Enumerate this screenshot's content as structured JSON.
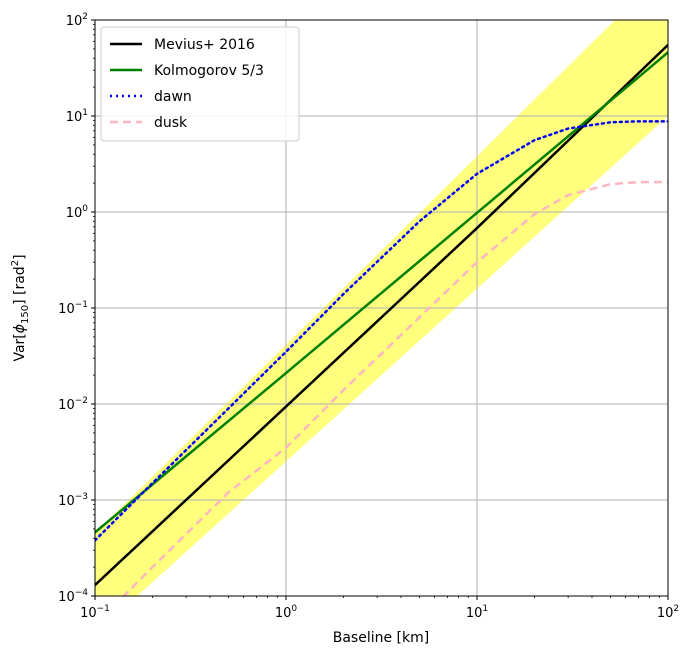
{
  "chart_data": {
    "type": "line",
    "xscale": "log",
    "yscale": "log",
    "xlim": [
      0.1,
      100
    ],
    "ylim": [
      0.0001,
      100
    ],
    "xlabel": "Baseline [km]",
    "ylabel": {
      "prefix": "Var[",
      "symbol": "ϕ",
      "subscript": "150",
      "suffix": "] [rad",
      "superscript": "2",
      "close": "]"
    },
    "x_ticks": [
      {
        "value": 0.1,
        "base": "10",
        "exp": "−1"
      },
      {
        "value": 1,
        "base": "10",
        "exp": "0"
      },
      {
        "value": 10,
        "base": "10",
        "exp": "1"
      },
      {
        "value": 100,
        "base": "10",
        "exp": "2"
      }
    ],
    "y_ticks": [
      {
        "value": 0.0001,
        "base": "10",
        "exp": "−4"
      },
      {
        "value": 0.001,
        "base": "10",
        "exp": "−3"
      },
      {
        "value": 0.01,
        "base": "10",
        "exp": "−2"
      },
      {
        "value": 0.1,
        "base": "10",
        "exp": "−1"
      },
      {
        "value": 1,
        "base": "10",
        "exp": "0"
      },
      {
        "value": 10,
        "base": "10",
        "exp": "1"
      },
      {
        "value": 100,
        "base": "10",
        "exp": "2"
      }
    ],
    "grid": true,
    "legend": "top-left",
    "band": {
      "color": "#ffff66",
      "lower": [
        [
          0.1,
          4e-05
        ],
        [
          100,
          10
        ]
      ],
      "upper": [
        [
          0.1,
          0.00045
        ],
        [
          100,
          350
        ]
      ]
    },
    "series": [
      {
        "name": "Mevius+ 2016",
        "color": "#000000",
        "style": "solid",
        "points": [
          [
            0.1,
            0.00013
          ],
          [
            1,
            0.0094
          ],
          [
            10,
            0.68
          ],
          [
            100,
            55
          ]
        ]
      },
      {
        "name": "Kolmogorov 5/3",
        "color": "#008000",
        "style": "solid",
        "points": [
          [
            0.1,
            0.00046
          ],
          [
            1,
            0.021
          ],
          [
            10,
            0.98
          ],
          [
            100,
            46
          ]
        ]
      },
      {
        "name": "dawn",
        "color": "#0000ff",
        "style": "dotted",
        "points": [
          [
            0.1,
            0.00038
          ],
          [
            0.2,
            0.0015
          ],
          [
            0.5,
            0.009
          ],
          [
            1,
            0.035
          ],
          [
            2,
            0.14
          ],
          [
            5,
            0.8
          ],
          [
            10,
            2.5
          ],
          [
            20,
            5.6
          ],
          [
            30,
            7.4
          ],
          [
            50,
            8.6
          ],
          [
            70,
            8.8
          ],
          [
            100,
            8.8
          ]
        ]
      },
      {
        "name": "dusk",
        "color": "#ffb6c1",
        "style": "dashed",
        "points": [
          [
            0.1,
            5e-05
          ],
          [
            0.2,
            0.0002
          ],
          [
            0.5,
            0.0012
          ],
          [
            1,
            0.0035
          ],
          [
            2,
            0.014
          ],
          [
            5,
            0.08
          ],
          [
            10,
            0.3
          ],
          [
            20,
            0.95
          ],
          [
            30,
            1.5
          ],
          [
            50,
            1.95
          ],
          [
            70,
            2.05
          ],
          [
            100,
            2.05
          ]
        ]
      }
    ]
  }
}
